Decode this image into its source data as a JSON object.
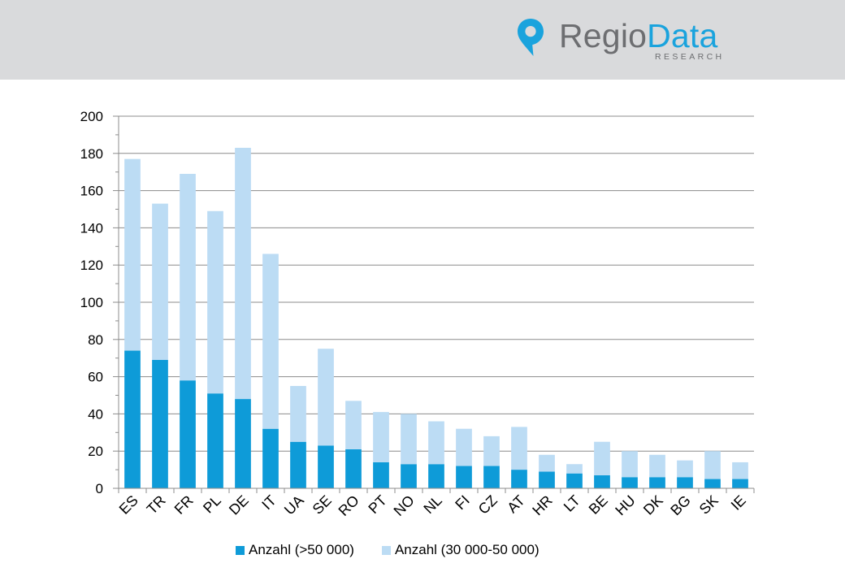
{
  "header": {
    "logo_regio": "Regio",
    "logo_data": "Data",
    "logo_sub": "RESEARCH"
  },
  "colors": {
    "header_bg": "#d9dadc",
    "series_dark": "#0e9bd8",
    "series_light": "#bcdcf4",
    "logo_grey": "#6d6e71",
    "logo_blue": "#1aa3dd",
    "grid": "#8c8c8c"
  },
  "chart_data": {
    "type": "bar",
    "stacked": true,
    "categories": [
      "ES",
      "TR",
      "FR",
      "PL",
      "DE",
      "IT",
      "UA",
      "SE",
      "RO",
      "PT",
      "NO",
      "NL",
      "FI",
      "CZ",
      "AT",
      "HR",
      "LT",
      "BE",
      "HU",
      "DK",
      "BG",
      "SK",
      "IE"
    ],
    "series": [
      {
        "name": "Anzahl (>50 000)",
        "color": "#0e9bd8",
        "values": [
          74,
          69,
          58,
          51,
          48,
          32,
          25,
          23,
          21,
          14,
          13,
          13,
          12,
          12,
          10,
          9,
          8,
          7,
          6,
          6,
          6,
          5,
          5
        ]
      },
      {
        "name": "Anzahl (30 000-50 000)",
        "color": "#bcdcf4",
        "values": [
          103,
          84,
          111,
          98,
          135,
          94,
          30,
          52,
          26,
          27,
          27,
          23,
          20,
          16,
          23,
          9,
          5,
          18,
          14,
          12,
          9,
          15,
          9
        ]
      }
    ],
    "title": "",
    "xlabel": "",
    "ylabel": "",
    "ylim": [
      0,
      200
    ],
    "yticks": [
      "0",
      "20",
      "40",
      "60",
      "80",
      "100",
      "120",
      "140",
      "160",
      "180",
      "200"
    ],
    "grid": true,
    "legend_position": "bottom"
  }
}
